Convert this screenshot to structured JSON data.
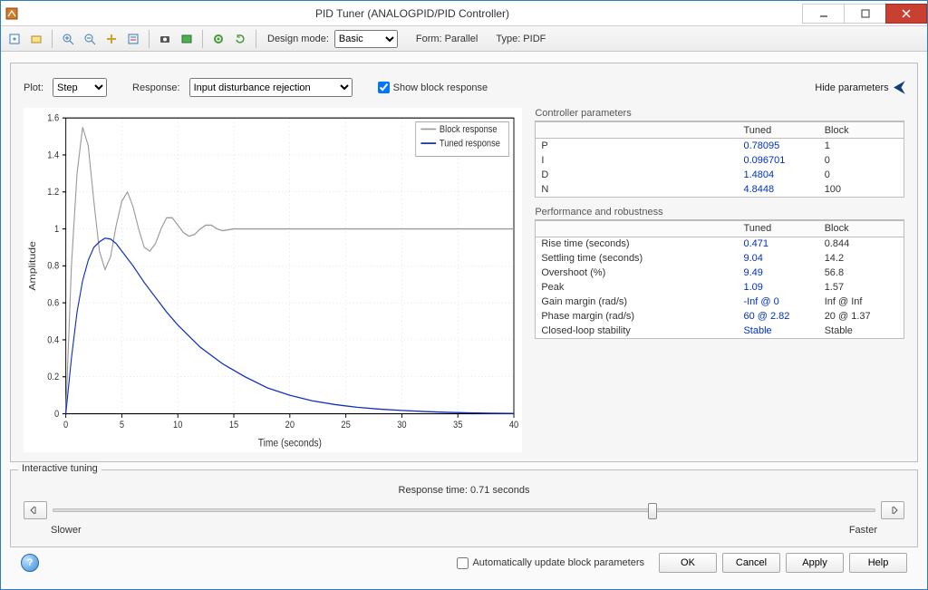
{
  "window": {
    "title": "PID Tuner (ANALOGPID/PID Controller)"
  },
  "toolbar": {
    "design_mode_label": "Design mode:",
    "design_mode_value": "Basic",
    "form_label": "Form: Parallel",
    "type_label": "Type: PIDF",
    "icons": [
      "new",
      "open",
      "zoom-in",
      "zoom-out",
      "pan",
      "data-cursor",
      "camera",
      "image",
      "gear",
      "refresh"
    ]
  },
  "upper": {
    "plot_label": "Plot:",
    "plot_value": "Step",
    "response_label": "Response:",
    "response_value": "Input disturbance rejection",
    "show_block_response": "Show block response",
    "show_block_response_checked": true,
    "hide_params": "Hide parameters"
  },
  "chart": {
    "type": "line",
    "xlabel": "Time (seconds)",
    "ylabel": "Amplitude",
    "xlim": [
      0,
      40
    ],
    "ylim": [
      0,
      1.6
    ],
    "xticks": [
      0,
      5,
      10,
      15,
      20,
      25,
      30,
      35,
      40
    ],
    "yticks": [
      0,
      0.2,
      0.4,
      0.6,
      0.8,
      1,
      1.2,
      1.4,
      1.6
    ],
    "grid_color": "#c8c8c8",
    "axis_color": "#000000",
    "background": "#ffffff",
    "legend": {
      "items": [
        {
          "label": "Block response",
          "color": "#9a9a9a"
        },
        {
          "label": "Tuned response",
          "color": "#1030c0"
        }
      ]
    },
    "series": [
      {
        "name": "Block response",
        "color": "#9a9a9a",
        "points": [
          [
            0,
            0
          ],
          [
            0.5,
            0.8
          ],
          [
            1.0,
            1.3
          ],
          [
            1.5,
            1.55
          ],
          [
            2.0,
            1.45
          ],
          [
            2.5,
            1.15
          ],
          [
            3.0,
            0.88
          ],
          [
            3.5,
            0.78
          ],
          [
            4.0,
            0.85
          ],
          [
            4.5,
            1.02
          ],
          [
            5.0,
            1.15
          ],
          [
            5.5,
            1.2
          ],
          [
            6.0,
            1.12
          ],
          [
            6.5,
            1.0
          ],
          [
            7.0,
            0.9
          ],
          [
            7.5,
            0.88
          ],
          [
            8.0,
            0.92
          ],
          [
            8.5,
            1.0
          ],
          [
            9.0,
            1.06
          ],
          [
            9.5,
            1.06
          ],
          [
            10.0,
            1.02
          ],
          [
            10.5,
            0.98
          ],
          [
            11.0,
            0.96
          ],
          [
            11.5,
            0.97
          ],
          [
            12.0,
            1.0
          ],
          [
            12.5,
            1.02
          ],
          [
            13.0,
            1.02
          ],
          [
            13.5,
            1.0
          ],
          [
            14.0,
            0.99
          ],
          [
            15,
            1.0
          ],
          [
            20,
            1.0
          ],
          [
            40,
            1.0
          ]
        ]
      },
      {
        "name": "Tuned response",
        "color": "#1030c0",
        "points": [
          [
            0,
            0
          ],
          [
            0.5,
            0.3
          ],
          [
            1.0,
            0.55
          ],
          [
            1.5,
            0.72
          ],
          [
            2.0,
            0.83
          ],
          [
            2.5,
            0.9
          ],
          [
            3.0,
            0.93
          ],
          [
            3.5,
            0.95
          ],
          [
            4.0,
            0.945
          ],
          [
            4.5,
            0.92
          ],
          [
            5.0,
            0.88
          ],
          [
            6.0,
            0.8
          ],
          [
            7.0,
            0.71
          ],
          [
            8.0,
            0.63
          ],
          [
            9.0,
            0.55
          ],
          [
            10.0,
            0.48
          ],
          [
            12.0,
            0.36
          ],
          [
            14.0,
            0.27
          ],
          [
            16.0,
            0.2
          ],
          [
            18.0,
            0.14
          ],
          [
            20.0,
            0.1
          ],
          [
            22.0,
            0.07
          ],
          [
            24.0,
            0.05
          ],
          [
            26.0,
            0.035
          ],
          [
            28.0,
            0.025
          ],
          [
            30.0,
            0.018
          ],
          [
            32.0,
            0.012
          ],
          [
            34.0,
            0.008
          ],
          [
            36.0,
            0.005
          ],
          [
            38.0,
            0.003
          ],
          [
            40.0,
            0.002
          ]
        ]
      }
    ]
  },
  "controller_params": {
    "title": "Controller parameters",
    "col_tuned": "Tuned",
    "col_block": "Block",
    "rows": [
      {
        "name": "P",
        "tuned": "0.78095",
        "block": "1"
      },
      {
        "name": "I",
        "tuned": "0.096701",
        "block": "0"
      },
      {
        "name": "D",
        "tuned": "1.4804",
        "block": "0"
      },
      {
        "name": "N",
        "tuned": "4.8448",
        "block": "100"
      }
    ]
  },
  "performance": {
    "title": "Performance and robustness",
    "col_tuned": "Tuned",
    "col_block": "Block",
    "rows": [
      {
        "name": "Rise time (seconds)",
        "tuned": "0.471",
        "block": "0.844"
      },
      {
        "name": "Settling time (seconds)",
        "tuned": "9.04",
        "block": "14.2"
      },
      {
        "name": "Overshoot (%)",
        "tuned": "9.49",
        "block": "56.8"
      },
      {
        "name": "Peak",
        "tuned": "1.09",
        "block": "1.57"
      },
      {
        "name": "Gain margin (rad/s)",
        "tuned": "-Inf @ 0",
        "block": "Inf @ Inf"
      },
      {
        "name": "Phase margin (rad/s)",
        "tuned": "60 @ 2.82",
        "block": "20 @ 1.37"
      },
      {
        "name": "Closed-loop stability",
        "tuned": "Stable",
        "block": "Stable"
      }
    ]
  },
  "interactive": {
    "title": "Interactive tuning",
    "response_time_label": "Response time: 0.71 seconds",
    "slower": "Slower",
    "faster": "Faster",
    "slider_position_pct": 73
  },
  "bottom": {
    "auto_update": "Automatically update block parameters",
    "auto_update_checked": false,
    "ok": "OK",
    "cancel": "Cancel",
    "apply": "Apply",
    "help": "Help"
  }
}
